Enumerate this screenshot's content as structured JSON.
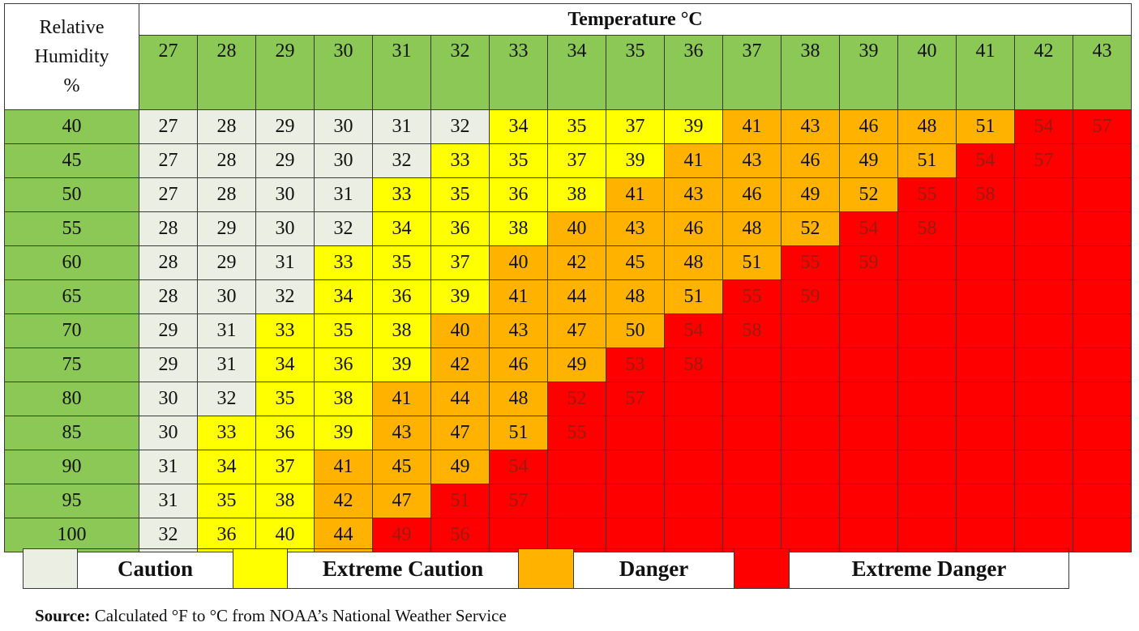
{
  "chart_data": {
    "type": "heatmap",
    "title": "Temperature °C",
    "ylabel": "Relative Humidity %",
    "x": [
      27,
      28,
      29,
      30,
      31,
      32,
      33,
      34,
      35,
      36,
      37,
      38,
      39,
      40,
      41,
      42,
      43
    ],
    "y": [
      40,
      45,
      50,
      55,
      60,
      65,
      70,
      75,
      80,
      85,
      90,
      95,
      100
    ],
    "values": [
      [
        27,
        28,
        29,
        30,
        31,
        32,
        34,
        35,
        37,
        39,
        41,
        43,
        46,
        48,
        51,
        54,
        57
      ],
      [
        27,
        28,
        29,
        30,
        32,
        33,
        35,
        37,
        39,
        41,
        43,
        46,
        49,
        51,
        54,
        57,
        null
      ],
      [
        27,
        28,
        30,
        31,
        33,
        35,
        36,
        38,
        41,
        43,
        46,
        49,
        52,
        55,
        58,
        null,
        null
      ],
      [
        28,
        29,
        30,
        32,
        34,
        36,
        38,
        40,
        43,
        46,
        48,
        52,
        54,
        58,
        null,
        null,
        null
      ],
      [
        28,
        29,
        31,
        33,
        35,
        37,
        40,
        42,
        45,
        48,
        51,
        55,
        59,
        null,
        null,
        null,
        null
      ],
      [
        28,
        30,
        32,
        34,
        36,
        39,
        41,
        44,
        48,
        51,
        55,
        59,
        null,
        null,
        null,
        null,
        null
      ],
      [
        29,
        31,
        33,
        35,
        38,
        40,
        43,
        47,
        50,
        54,
        58,
        null,
        null,
        null,
        null,
        null,
        null
      ],
      [
        29,
        31,
        34,
        36,
        39,
        42,
        46,
        49,
        53,
        58,
        null,
        null,
        null,
        null,
        null,
        null,
        null
      ],
      [
        30,
        32,
        35,
        38,
        41,
        44,
        48,
        52,
        57,
        null,
        null,
        null,
        null,
        null,
        null,
        null,
        null
      ],
      [
        30,
        33,
        36,
        39,
        43,
        47,
        51,
        55,
        null,
        null,
        null,
        null,
        null,
        null,
        null,
        null,
        null
      ],
      [
        31,
        34,
        37,
        41,
        45,
        49,
        54,
        null,
        null,
        null,
        null,
        null,
        null,
        null,
        null,
        null,
        null
      ],
      [
        31,
        35,
        38,
        42,
        47,
        51,
        57,
        null,
        null,
        null,
        null,
        null,
        null,
        null,
        null,
        null,
        null
      ],
      [
        32,
        36,
        40,
        44,
        49,
        56,
        null,
        null,
        null,
        null,
        null,
        null,
        null,
        null,
        null,
        null,
        null
      ]
    ],
    "categories_levels": [
      [
        0,
        0,
        0,
        0,
        0,
        0,
        1,
        1,
        1,
        1,
        2,
        2,
        2,
        2,
        2,
        3,
        3
      ],
      [
        0,
        0,
        0,
        0,
        0,
        1,
        1,
        1,
        1,
        2,
        2,
        2,
        2,
        2,
        3,
        3,
        3
      ],
      [
        0,
        0,
        0,
        0,
        1,
        1,
        1,
        1,
        2,
        2,
        2,
        2,
        2,
        3,
        3,
        3,
        3
      ],
      [
        0,
        0,
        0,
        0,
        1,
        1,
        1,
        2,
        2,
        2,
        2,
        2,
        3,
        3,
        3,
        3,
        3
      ],
      [
        0,
        0,
        0,
        1,
        1,
        1,
        2,
        2,
        2,
        2,
        2,
        3,
        3,
        3,
        3,
        3,
        3
      ],
      [
        0,
        0,
        0,
        1,
        1,
        1,
        2,
        2,
        2,
        2,
        3,
        3,
        3,
        3,
        3,
        3,
        3
      ],
      [
        0,
        0,
        1,
        1,
        1,
        2,
        2,
        2,
        2,
        3,
        3,
        3,
        3,
        3,
        3,
        3,
        3
      ],
      [
        0,
        0,
        1,
        1,
        1,
        2,
        2,
        2,
        3,
        3,
        3,
        3,
        3,
        3,
        3,
        3,
        3
      ],
      [
        0,
        0,
        1,
        1,
        2,
        2,
        2,
        3,
        3,
        3,
        3,
        3,
        3,
        3,
        3,
        3,
        3
      ],
      [
        0,
        1,
        1,
        1,
        2,
        2,
        2,
        3,
        3,
        3,
        3,
        3,
        3,
        3,
        3,
        3,
        3
      ],
      [
        0,
        1,
        1,
        2,
        2,
        2,
        3,
        3,
        3,
        3,
        3,
        3,
        3,
        3,
        3,
        3,
        3
      ],
      [
        0,
        1,
        1,
        2,
        2,
        3,
        3,
        3,
        3,
        3,
        3,
        3,
        3,
        3,
        3,
        3,
        3
      ],
      [
        0,
        1,
        1,
        2,
        3,
        3,
        3,
        3,
        3,
        3,
        3,
        3,
        3,
        3,
        3,
        3,
        3
      ]
    ],
    "legend": [
      "Caution",
      "Extreme Caution",
      "Danger",
      "Extreme Danger"
    ],
    "colors": {
      "header": "#8cc855",
      "caution": "#ebeee2",
      "extreme_caution": "#ffff00",
      "danger": "#ffb300",
      "extreme_danger": "#ff0000",
      "extreme_danger_text": "#9b1a10"
    }
  },
  "corner": {
    "line1": "Relative",
    "line2": "Humidity",
    "line3": "%"
  },
  "source": {
    "label": "Source:",
    "text": " Calculated °F to °C from NOAA’s National Weather Service"
  }
}
